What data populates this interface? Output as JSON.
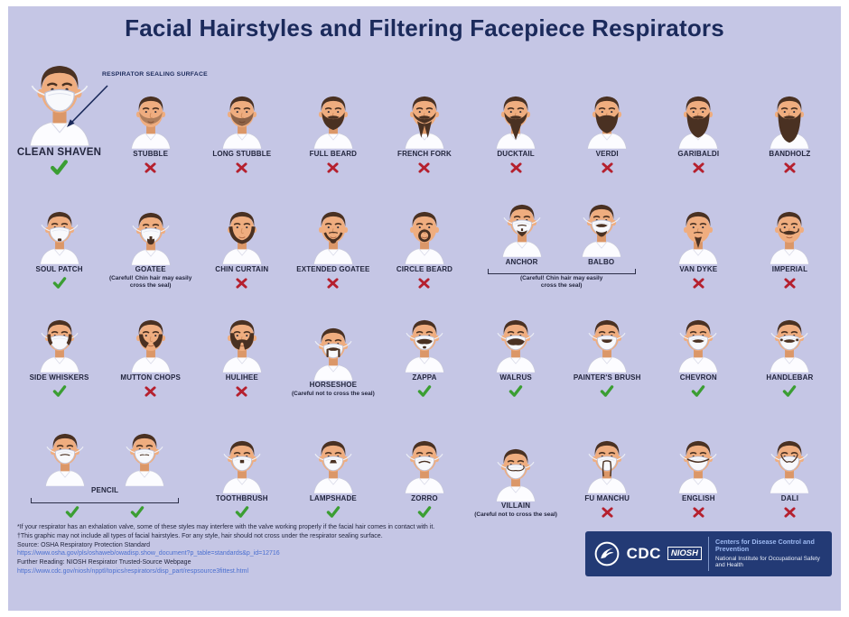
{
  "title": "Facial Hairstyles and Filtering Facepiece Respirators",
  "sealing_label": "RESPIRATOR SEALING SURFACE",
  "colors": {
    "background": "#c5c6e5",
    "frame": "#ffffff",
    "title": "#1b2a5b",
    "label": "#23263e",
    "check": "#3b9e33",
    "cross": "#b5202e",
    "link": "#4a6fd0",
    "footer_bg": "#233a75",
    "hair": "#4a3122",
    "skin": "#efad7f"
  },
  "rows": [
    {
      "cells": [
        {
          "type": "style",
          "name": "CLEAN SHAVEN",
          "mark": "check",
          "hair": "clean",
          "respirator": true,
          "large": true,
          "annotated": true
        },
        {
          "type": "style",
          "name": "STUBBLE",
          "mark": "cross",
          "hair": "stubble",
          "respirator": false
        },
        {
          "type": "style",
          "name": "LONG STUBBLE",
          "mark": "cross",
          "hair": "long-stubble",
          "respirator": false
        },
        {
          "type": "style",
          "name": "FULL BEARD",
          "mark": "cross",
          "hair": "full-beard",
          "respirator": false
        },
        {
          "type": "style",
          "name": "FRENCH FORK",
          "mark": "cross",
          "hair": "french-fork",
          "respirator": false
        },
        {
          "type": "style",
          "name": "DUCKTAIL",
          "mark": "cross",
          "hair": "ducktail",
          "respirator": false
        },
        {
          "type": "style",
          "name": "VERDI",
          "mark": "cross",
          "hair": "verdi",
          "respirator": false
        },
        {
          "type": "style",
          "name": "GARIBALDI",
          "mark": "cross",
          "hair": "garibaldi",
          "respirator": false
        },
        {
          "type": "style",
          "name": "BANDHOLZ",
          "mark": "cross",
          "hair": "bandholz",
          "respirator": false
        }
      ]
    },
    {
      "cells": [
        {
          "type": "style",
          "name": "SOUL PATCH",
          "mark": "check",
          "hair": "soul-patch",
          "respirator": true
        },
        {
          "type": "style",
          "name": "GOATEE",
          "mark": "none",
          "caution": "(Careful! Chin hair may easily cross the seal)",
          "hair": "goatee",
          "respirator": true
        },
        {
          "type": "style",
          "name": "CHIN CURTAIN",
          "mark": "cross",
          "hair": "chin-curtain",
          "respirator": false
        },
        {
          "type": "style",
          "name": "EXTENDED GOATEE",
          "mark": "cross",
          "hair": "extended-goatee",
          "respirator": false
        },
        {
          "type": "style",
          "name": "CIRCLE BEARD",
          "mark": "cross",
          "hair": "circle-beard",
          "respirator": false
        },
        {
          "type": "pair",
          "names": [
            "ANCHOR",
            "BALBO"
          ],
          "hairs": [
            "anchor",
            "balbo"
          ],
          "respirator": true,
          "caution": "(Careful! Chin hair may easily cross the seal)"
        },
        {
          "type": "style",
          "name": "VAN DYKE",
          "mark": "cross",
          "hair": "van-dyke",
          "respirator": false
        },
        {
          "type": "style",
          "name": "IMPERIAL",
          "mark": "cross",
          "hair": "imperial",
          "respirator": false
        }
      ]
    },
    {
      "cells": [
        {
          "type": "style",
          "name": "SIDE WHISKERS",
          "mark": "check",
          "hair": "side-whiskers",
          "respirator": true
        },
        {
          "type": "style",
          "name": "MUTTON CHOPS",
          "mark": "cross",
          "hair": "mutton-chops",
          "respirator": false
        },
        {
          "type": "style",
          "name": "HULIHEE",
          "mark": "cross",
          "hair": "hulihee",
          "respirator": false
        },
        {
          "type": "style",
          "name": "HORSESHOE",
          "mark": "none",
          "caution": "(Careful not to cross the seal)",
          "hair": "horseshoe",
          "respirator": true
        },
        {
          "type": "style",
          "name": "ZAPPA",
          "mark": "check",
          "hair": "zappa",
          "respirator": true
        },
        {
          "type": "style",
          "name": "WALRUS",
          "mark": "check",
          "hair": "walrus",
          "respirator": true
        },
        {
          "type": "style",
          "name": "PAINTER'S BRUSH",
          "mark": "check",
          "hair": "painters-brush",
          "respirator": true
        },
        {
          "type": "style",
          "name": "CHEVRON",
          "mark": "check",
          "hair": "chevron",
          "respirator": true
        },
        {
          "type": "style",
          "name": "HANDLEBAR",
          "mark": "check",
          "hair": "handlebar",
          "respirator": true
        }
      ]
    },
    {
      "cells": [
        {
          "type": "pencil",
          "label": "PENCIL",
          "hairs": [
            "pencil",
            "pencil-thin"
          ],
          "respirator": true,
          "marks": [
            "check",
            "check"
          ]
        },
        {
          "type": "style",
          "name": "TOOTHBRUSH",
          "mark": "check",
          "hair": "toothbrush",
          "respirator": true
        },
        {
          "type": "style",
          "name": "LAMPSHADE",
          "mark": "check",
          "hair": "lampshade",
          "respirator": true
        },
        {
          "type": "style",
          "name": "ZORRO",
          "mark": "check",
          "hair": "zorro",
          "respirator": true
        },
        {
          "type": "style",
          "name": "VILLAIN",
          "mark": "none",
          "caution": "(Careful not to cross the seal)",
          "hair": "villain",
          "respirator": true
        },
        {
          "type": "style",
          "name": "FU MANCHU",
          "mark": "cross",
          "hair": "fu-manchu",
          "respirator": true
        },
        {
          "type": "style",
          "name": "ENGLISH",
          "mark": "cross",
          "hair": "english",
          "respirator": true
        },
        {
          "type": "style",
          "name": "DALI",
          "mark": "cross",
          "hair": "dali",
          "respirator": true
        }
      ]
    }
  ],
  "footnotes": {
    "lines": [
      {
        "text": "*If your respirator has an exhalation valve, some of these styles may interfere with the valve working properly if the facial hair comes in contact with it.",
        "link": false
      },
      {
        "text": "†This graphic may not include all types of facial hairstyles. For any style, hair should not cross under the respirator sealing surface.",
        "link": false
      },
      {
        "text": "Source: OSHA Respiratory Protection Standard",
        "link": false
      },
      {
        "text": "https://www.osha.gov/pls/oshaweb/owadisp.show_document?p_table=standards&p_id=12716",
        "link": true
      },
      {
        "text": "Further Reading: NIOSH Respirator Trusted-Source Webpage",
        "link": false
      },
      {
        "text": "https://www.cdc.gov/niosh/npptl/topics/respirators/disp_part/respsource3fittest.html",
        "link": true
      }
    ]
  },
  "org": {
    "cdc": "CDC",
    "niosh": "NIOSH",
    "line1": "Centers for Disease Control and Prevention",
    "line2": "National Institute for Occupational Safety and Health"
  }
}
